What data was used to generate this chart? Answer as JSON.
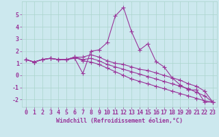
{
  "xlabel": "Windchill (Refroidissement éolien,°C)",
  "ylabel": "",
  "bg_color": "#cce8ee",
  "grid_color": "#aad4cc",
  "line_color": "#993399",
  "spine_color": "#aad4cc",
  "xlim": [
    -0.5,
    23.5
  ],
  "ylim": [
    -2.6,
    6.1
  ],
  "yticks": [
    -2,
    -1,
    0,
    1,
    2,
    3,
    4,
    5
  ],
  "xticks": [
    0,
    1,
    2,
    3,
    4,
    5,
    6,
    7,
    8,
    9,
    10,
    11,
    12,
    13,
    14,
    15,
    16,
    17,
    18,
    19,
    20,
    21,
    22,
    23
  ],
  "series": [
    [
      1.3,
      1.1,
      1.3,
      1.4,
      1.3,
      1.3,
      1.4,
      0.15,
      2.0,
      2.1,
      2.7,
      4.9,
      5.6,
      3.6,
      2.1,
      2.6,
      1.15,
      0.7,
      -0.2,
      -0.8,
      -1.2,
      -1.2,
      -2.2,
      -2.2
    ],
    [
      1.3,
      1.1,
      1.3,
      1.4,
      1.3,
      1.3,
      1.5,
      1.5,
      1.7,
      1.5,
      1.2,
      1.0,
      0.9,
      0.7,
      0.5,
      0.4,
      0.2,
      0.0,
      -0.2,
      -0.4,
      -0.7,
      -0.9,
      -1.3,
      -2.2
    ],
    [
      1.3,
      1.1,
      1.3,
      1.4,
      1.3,
      1.3,
      1.5,
      1.3,
      1.4,
      1.2,
      0.9,
      0.7,
      0.5,
      0.3,
      0.1,
      -0.1,
      -0.3,
      -0.5,
      -0.7,
      -0.9,
      -1.1,
      -1.4,
      -1.7,
      -2.2
    ],
    [
      1.3,
      1.1,
      1.3,
      1.4,
      1.3,
      1.3,
      1.5,
      1.2,
      1.1,
      0.9,
      0.6,
      0.3,
      0.0,
      -0.3,
      -0.5,
      -0.7,
      -0.9,
      -1.1,
      -1.3,
      -1.5,
      -1.7,
      -1.9,
      -2.1,
      -2.2
    ]
  ],
  "marker": "+",
  "markersize": 4,
  "linewidth": 0.8,
  "tick_fontsize": 6,
  "xlabel_fontsize": 6
}
